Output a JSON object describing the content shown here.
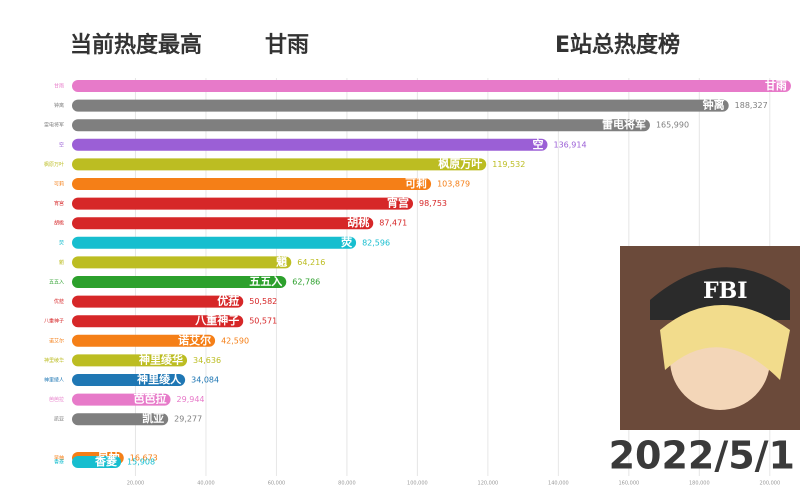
{
  "chart_data": {
    "type": "barh",
    "title": "E站总热度榜",
    "annotations": [
      "当前热度最高",
      "甘雨",
      "2022/5/1",
      "FBI"
    ],
    "categories": [
      "甘雨",
      "钟离",
      "雷电将军",
      "空",
      "枫原万叶",
      "可莉",
      "宵宫",
      "胡桃",
      "荧",
      "魈",
      "五五入",
      "优菈",
      "八重神子",
      "诺艾尔",
      "神里绫华",
      "神里绫人",
      "芭芭拉",
      "凯亚",
      "早柚",
      "香菱"
    ],
    "values": [
      206000,
      188327,
      165990,
      136914,
      119532,
      103879,
      98753,
      87471,
      82596,
      64216,
      62786,
      50582,
      50571,
      42590,
      34636,
      34084,
      29944,
      29277,
      16673,
      15908
    ],
    "value_labels": [
      null,
      "188,327",
      "165,990",
      "136,914",
      "119,532",
      "103,879",
      "98,753",
      "87,471",
      "82,596",
      "64,216",
      "62,786",
      "50,582",
      "50,571",
      "42,590",
      "34,636",
      "34,084",
      "29,944",
      "29,277",
      "16,673",
      "15,908"
    ],
    "colors": [
      "#e77ac9",
      "#7f7f7f",
      "#7f7f7f",
      "#9b5fd6",
      "#bcbd22",
      "#f57f17",
      "#d62728",
      "#d62728",
      "#17becf",
      "#bcbd22",
      "#2ca02c",
      "#d62728",
      "#d62728",
      "#f57f17",
      "#bcbd22",
      "#1f77b4",
      "#e77ac9",
      "#7f7f7f",
      "#f57f17",
      "#17becf"
    ],
    "xlim": [
      0,
      208000
    ],
    "xticks": [
      {
        "value": 20000,
        "label": "20,000"
      },
      {
        "value": 40000,
        "label": "40,000"
      },
      {
        "value": 60000,
        "label": "60,000"
      },
      {
        "value": 80000,
        "label": "80,000"
      },
      {
        "value": 100000,
        "label": "100,000"
      },
      {
        "value": 120000,
        "label": "120,000"
      },
      {
        "value": 140000,
        "label": "140,000"
      },
      {
        "value": 160000,
        "label": "160,000"
      },
      {
        "value": 180000,
        "label": "180,000"
      },
      {
        "value": 200000,
        "label": "200,000"
      }
    ],
    "grid": true
  }
}
